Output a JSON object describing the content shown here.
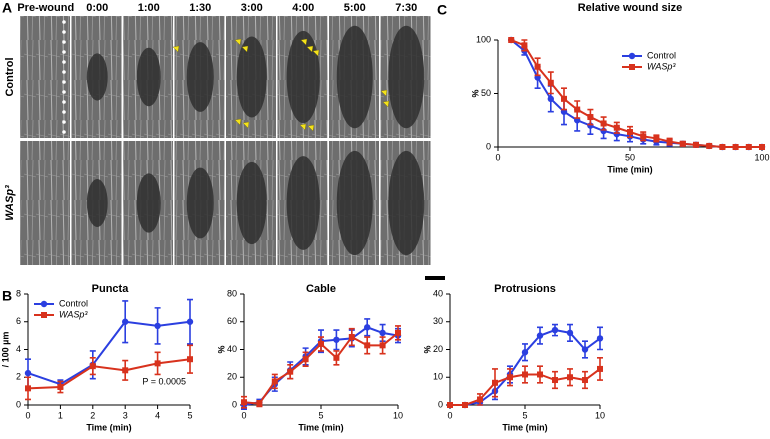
{
  "panel_labels": [
    "A",
    "B",
    "C"
  ],
  "figure": {
    "column_labels": [
      "Pre-wound",
      "0:00",
      "1:00",
      "1:30",
      "3:00",
      "4:00",
      "5:00",
      "7:30"
    ],
    "row_labels": [
      "Control",
      "WASp³"
    ]
  },
  "chart_data": [
    {
      "type": "line",
      "title": "Relative wound size",
      "x_label": "Time (min)",
      "y_label": "%",
      "xlim": [
        0,
        100
      ],
      "xticks": [
        0,
        50,
        100
      ],
      "ylim": [
        0,
        100
      ],
      "yticks": [
        0,
        50,
        100
      ],
      "legend": "upper right",
      "x": [
        5,
        10,
        15,
        20,
        25,
        30,
        35,
        40,
        45,
        50,
        55,
        60,
        65,
        70,
        75,
        80,
        85,
        90,
        95,
        100
      ],
      "series": [
        {
          "name": "Control",
          "color": "#2b3fe0",
          "marker": "circle",
          "values": [
            100,
            90,
            65,
            45,
            33,
            25,
            20,
            15,
            12,
            10,
            7,
            5,
            4,
            3,
            2,
            1,
            0,
            0,
            0,
            0
          ],
          "errors": [
            0,
            4,
            10,
            12,
            12,
            10,
            8,
            7,
            6,
            5,
            4,
            3,
            3,
            2,
            2,
            1,
            1,
            0,
            0,
            0
          ]
        },
        {
          "name": "WASp³",
          "color": "#d8321d",
          "marker": "square",
          "values": [
            100,
            95,
            75,
            60,
            45,
            35,
            28,
            22,
            18,
            14,
            10,
            8,
            5,
            3,
            2,
            1,
            0,
            0,
            0,
            0
          ],
          "errors": [
            0,
            5,
            8,
            10,
            10,
            8,
            7,
            6,
            5,
            5,
            4,
            3,
            3,
            2,
            1,
            1,
            1,
            0,
            0,
            0
          ]
        }
      ]
    },
    {
      "type": "line",
      "title": "Puncta",
      "x_label": "Time (min)",
      "y_label": "/ 100 µm",
      "xlim": [
        0,
        5
      ],
      "xticks": [
        0,
        1,
        2,
        3,
        4,
        5
      ],
      "ylim": [
        0,
        8
      ],
      "yticks": [
        0,
        2,
        4,
        6,
        8
      ],
      "legend": "upper left",
      "annotation": "P = 0.0005",
      "x": [
        0,
        1,
        2,
        3,
        4,
        5
      ],
      "series": [
        {
          "name": "Control",
          "color": "#2b3fe0",
          "marker": "circle",
          "values": [
            2.3,
            1.5,
            2.9,
            6.0,
            5.7,
            6.0
          ],
          "errors": [
            1.0,
            0.3,
            1.0,
            1.5,
            1.3,
            1.6
          ]
        },
        {
          "name": "WASp³",
          "color": "#d8321d",
          "marker": "square",
          "values": [
            1.2,
            1.3,
            2.8,
            2.5,
            3.0,
            3.3
          ],
          "errors": [
            0.8,
            0.4,
            0.6,
            0.7,
            0.8,
            1.0
          ]
        }
      ]
    },
    {
      "type": "line",
      "title": "Cable",
      "x_label": "Time (min)",
      "y_label": "%",
      "xlim": [
        0,
        10
      ],
      "xticks": [
        0,
        5,
        10
      ],
      "ylim": [
        0,
        80
      ],
      "yticks": [
        0,
        20,
        40,
        60,
        80
      ],
      "x": [
        0,
        1,
        2,
        3,
        4,
        5,
        6,
        7,
        8,
        9,
        10
      ],
      "series": [
        {
          "name": "Control",
          "color": "#2b3fe0",
          "marker": "circle",
          "values": [
            0,
            2,
            15,
            25,
            35,
            46,
            47,
            48,
            56,
            52,
            50
          ],
          "errors": [
            3,
            2,
            5,
            6,
            6,
            8,
            7,
            6,
            6,
            6,
            5
          ]
        },
        {
          "name": "WASp³",
          "color": "#d8321d",
          "marker": "square",
          "values": [
            2,
            1,
            17,
            24,
            33,
            44,
            34,
            49,
            43,
            43,
            52
          ],
          "errors": [
            4,
            2,
            5,
            5,
            5,
            5,
            5,
            6,
            6,
            6,
            5
          ]
        }
      ]
    },
    {
      "type": "line",
      "title": "Protrusions",
      "x_label": "Time (min)",
      "y_label": "%",
      "xlim": [
        0,
        10
      ],
      "xticks": [
        0,
        5,
        10
      ],
      "ylim": [
        0,
        40
      ],
      "yticks": [
        0,
        10,
        20,
        30,
        40
      ],
      "x": [
        0,
        1,
        2,
        3,
        4,
        5,
        6,
        7,
        8,
        9,
        10
      ],
      "series": [
        {
          "name": "Control",
          "color": "#2b3fe0",
          "marker": "circle",
          "values": [
            0,
            0,
            1,
            5,
            11,
            19,
            25,
            27,
            26,
            20,
            24
          ],
          "errors": [
            0.5,
            0.5,
            1,
            3,
            3,
            3,
            3,
            2,
            3,
            3,
            4
          ]
        },
        {
          "name": "WASp³",
          "color": "#d8321d",
          "marker": "square",
          "values": [
            0,
            0,
            2,
            8,
            10,
            11,
            11,
            9,
            10,
            9,
            13
          ],
          "errors": [
            0.5,
            0.5,
            2,
            5,
            3,
            3,
            3,
            3,
            3,
            3,
            4
          ]
        }
      ]
    }
  ]
}
